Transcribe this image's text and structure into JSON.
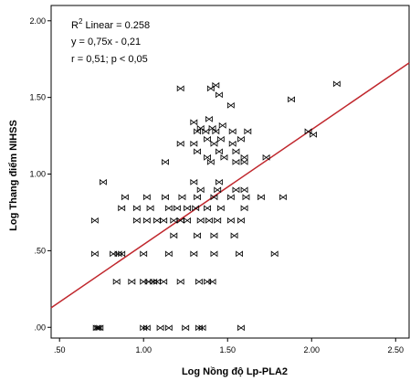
{
  "chart_data": {
    "type": "scatter",
    "xlabel": "Log Nồng độ Lp-PLA2",
    "ylabel": "Log Thang điểm NIHSS",
    "xlim": [
      0.45,
      2.58
    ],
    "ylim": [
      -0.07,
      2.1
    ],
    "x_ticks": [
      ".50",
      "1.00",
      "1.50",
      "2.00",
      "2.50"
    ],
    "x_tick_values": [
      0.5,
      1.0,
      1.5,
      2.0,
      2.5
    ],
    "y_ticks": [
      ".00",
      ".50",
      "1.00",
      "1.50",
      "2.00"
    ],
    "y_tick_values": [
      0.0,
      0.5,
      1.0,
      1.5,
      2.0
    ],
    "grid": false,
    "marker_symbol": "⋈",
    "annotations": {
      "r2_prefix": "R",
      "r2_sup": "2",
      "r2_rest": " Linear = 0.258",
      "equation": "y = 0,75x - 0,21",
      "correlation": "r = 0,51; p < 0,05"
    },
    "fit_line": {
      "slope": 0.75,
      "intercept": -0.21,
      "color": "#c0272d"
    },
    "points": [
      [
        0.72,
        0
      ],
      [
        0.74,
        0
      ],
      [
        0.73,
        0
      ],
      [
        1.0,
        0
      ],
      [
        1.02,
        0
      ],
      [
        1.1,
        0
      ],
      [
        1.15,
        0
      ],
      [
        1.25,
        0
      ],
      [
        1.33,
        0
      ],
      [
        1.35,
        0
      ],
      [
        1.58,
        0
      ],
      [
        0.84,
        0.3
      ],
      [
        0.93,
        0.3
      ],
      [
        1.0,
        0.3
      ],
      [
        1.03,
        0.3
      ],
      [
        1.06,
        0.3
      ],
      [
        1.08,
        0.3
      ],
      [
        1.12,
        0.3
      ],
      [
        1.22,
        0.3
      ],
      [
        1.33,
        0.3
      ],
      [
        1.38,
        0.3
      ],
      [
        1.41,
        0.3
      ],
      [
        0.71,
        0.48
      ],
      [
        0.82,
        0.48
      ],
      [
        0.85,
        0.48
      ],
      [
        0.87,
        0.48
      ],
      [
        1.0,
        0.48
      ],
      [
        1.15,
        0.48
      ],
      [
        1.3,
        0.48
      ],
      [
        1.42,
        0.48
      ],
      [
        1.57,
        0.48
      ],
      [
        1.78,
        0.48
      ],
      [
        1.18,
        0.6
      ],
      [
        1.32,
        0.6
      ],
      [
        1.42,
        0.6
      ],
      [
        1.54,
        0.6
      ],
      [
        0.71,
        0.7
      ],
      [
        0.96,
        0.7
      ],
      [
        1.02,
        0.7
      ],
      [
        1.08,
        0.7
      ],
      [
        1.12,
        0.7
      ],
      [
        1.18,
        0.7
      ],
      [
        1.22,
        0.7
      ],
      [
        1.26,
        0.7
      ],
      [
        1.34,
        0.7
      ],
      [
        1.39,
        0.7
      ],
      [
        1.44,
        0.7
      ],
      [
        1.52,
        0.7
      ],
      [
        1.58,
        0.7
      ],
      [
        0.87,
        0.78
      ],
      [
        0.96,
        0.78
      ],
      [
        1.04,
        0.78
      ],
      [
        1.15,
        0.78
      ],
      [
        1.2,
        0.78
      ],
      [
        1.26,
        0.78
      ],
      [
        1.31,
        0.78
      ],
      [
        1.38,
        0.78
      ],
      [
        1.46,
        0.78
      ],
      [
        1.6,
        0.78
      ],
      [
        0.89,
        0.85
      ],
      [
        1.02,
        0.85
      ],
      [
        1.13,
        0.85
      ],
      [
        1.23,
        0.85
      ],
      [
        1.32,
        0.85
      ],
      [
        1.42,
        0.85
      ],
      [
        1.52,
        0.85
      ],
      [
        1.61,
        0.85
      ],
      [
        1.7,
        0.85
      ],
      [
        1.83,
        0.85
      ],
      [
        1.34,
        0.9
      ],
      [
        1.44,
        0.9
      ],
      [
        1.55,
        0.9
      ],
      [
        1.6,
        0.9
      ],
      [
        0.76,
        0.95
      ],
      [
        1.3,
        0.95
      ],
      [
        1.45,
        0.95
      ],
      [
        1.13,
        1.08
      ],
      [
        1.4,
        1.08
      ],
      [
        1.55,
        1.08
      ],
      [
        1.6,
        1.08
      ],
      [
        1.38,
        1.11
      ],
      [
        1.48,
        1.11
      ],
      [
        1.6,
        1.11
      ],
      [
        1.73,
        1.11
      ],
      [
        1.32,
        1.15
      ],
      [
        1.45,
        1.15
      ],
      [
        1.55,
        1.15
      ],
      [
        1.22,
        1.2
      ],
      [
        1.3,
        1.2
      ],
      [
        1.42,
        1.2
      ],
      [
        1.53,
        1.2
      ],
      [
        1.38,
        1.23
      ],
      [
        1.46,
        1.23
      ],
      [
        1.58,
        1.23
      ],
      [
        1.32,
        1.28
      ],
      [
        1.37,
        1.28
      ],
      [
        1.43,
        1.28
      ],
      [
        1.53,
        1.28
      ],
      [
        1.62,
        1.28
      ],
      [
        1.98,
        1.28
      ],
      [
        2.01,
        1.26
      ],
      [
        1.34,
        1.3
      ],
      [
        1.41,
        1.3
      ],
      [
        1.47,
        1.32
      ],
      [
        1.3,
        1.34
      ],
      [
        1.39,
        1.36
      ],
      [
        1.52,
        1.45
      ],
      [
        1.88,
        1.49
      ],
      [
        1.45,
        1.52
      ],
      [
        1.22,
        1.56
      ],
      [
        1.4,
        1.56
      ],
      [
        1.43,
        1.58
      ],
      [
        2.15,
        1.59
      ]
    ]
  }
}
